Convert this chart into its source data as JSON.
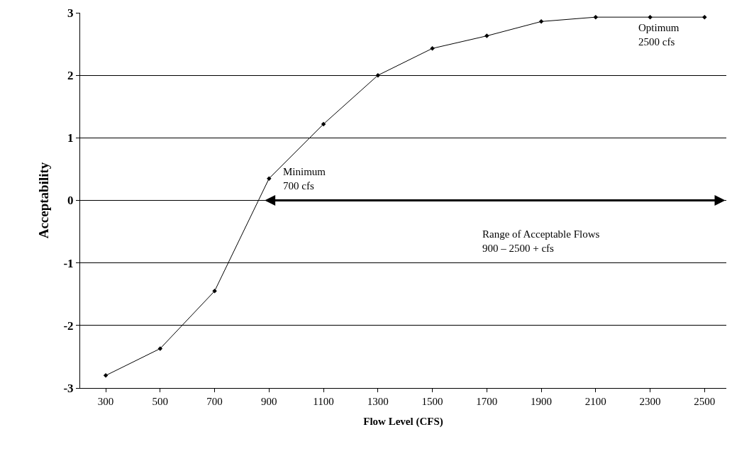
{
  "chart_data": {
    "type": "line",
    "xlabel": "Flow Level (CFS)",
    "ylabel": "Acceptability",
    "categories": [
      "300",
      "500",
      "700",
      "900",
      "1100",
      "1300",
      "1500",
      "1700",
      "1900",
      "2100",
      "2300",
      "2500"
    ],
    "series": [
      {
        "color": "#000000",
        "values": [
          -2.8,
          -2.37,
          -1.45,
          0.35,
          1.22,
          2.0,
          2.43,
          2.63,
          2.86,
          2.93,
          2.93,
          2.93
        ]
      }
    ],
    "ylim": [
      -3,
      3
    ],
    "yticks": [
      -3,
      -2,
      -1,
      0,
      1,
      2,
      3
    ],
    "grid": "y",
    "marker": "diamond",
    "line_style": "solid",
    "annotations": [
      {
        "text": "Minimum\n700 cfs",
        "x": "900",
        "y": 0.35
      },
      {
        "text": "Optimum\n2500 cfs",
        "x": "2500",
        "y": 2.93
      },
      "Range of Acceptable Flows\n900 – 2500 + cfs"
    ]
  }
}
